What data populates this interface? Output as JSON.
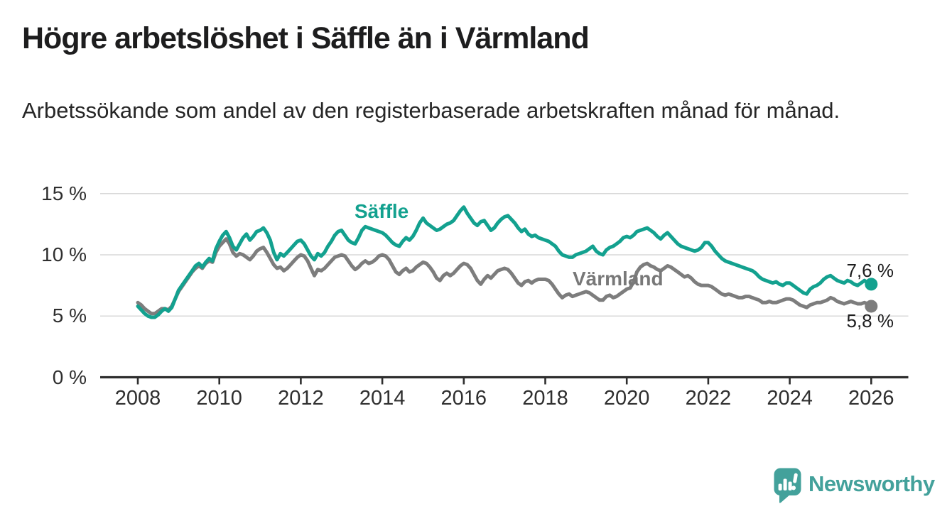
{
  "title": "Högre arbetslöshet i Säffle än i Värmland",
  "subtitle": "Arbetssökande som andel av den registerbaserade arbetskraften månad för månad.",
  "footer": {
    "brand": "Newsworthy"
  },
  "colors": {
    "saffle_line": "#13a18f",
    "varmland_line": "#7d7d7d",
    "axis": "#2e2e2e",
    "grid": "#d9d9d9",
    "text": "#1d1d1e",
    "brand_teal": "#43a19b"
  },
  "chart_data": {
    "type": "line",
    "title": "Högre arbetslöshet i Säffle än i Värmland",
    "subtitle": "Arbetssökande som andel av den registerbaserade arbetskraften månad för månad.",
    "unit": "%",
    "x_interval": "monthly",
    "x_start": "2008-01",
    "x_end": "2026-01",
    "xlim": [
      2007.05,
      2027.0
    ],
    "ylim": [
      0,
      15
    ],
    "grid": "horizontal",
    "x_ticks": [
      2008,
      2010,
      2012,
      2014,
      2016,
      2018,
      2020,
      2022,
      2024,
      2026
    ],
    "y_ticks": [
      {
        "value": 15,
        "label": "15 %"
      },
      {
        "value": 10,
        "label": "10 %"
      },
      {
        "value": 5,
        "label": "5 %"
      },
      {
        "value": 0,
        "label": "0 %"
      }
    ],
    "series": [
      {
        "name": "Säffle",
        "color": "#13a18f",
        "end_label": "7,6 %",
        "end_value": 7.6,
        "values": [
          5.8,
          5.5,
          5.2,
          5.0,
          4.9,
          4.9,
          5.1,
          5.4,
          5.6,
          5.4,
          5.7,
          6.4,
          7.1,
          7.5,
          7.9,
          8.3,
          8.7,
          9.1,
          9.3,
          9.0,
          9.4,
          9.7,
          9.5,
          10.5,
          11.1,
          11.6,
          11.9,
          11.4,
          10.7,
          10.4,
          10.9,
          11.4,
          11.7,
          11.2,
          11.5,
          11.9,
          12.0,
          12.2,
          11.8,
          11.2,
          10.2,
          9.6,
          10.1,
          9.9,
          10.2,
          10.5,
          10.8,
          11.1,
          11.2,
          10.9,
          10.4,
          9.9,
          9.6,
          10.1,
          9.9,
          10.2,
          10.7,
          11.1,
          11.6,
          11.9,
          12.0,
          11.6,
          11.2,
          11.0,
          10.9,
          11.4,
          12.0,
          12.3,
          12.2,
          12.1,
          12.0,
          11.9,
          11.8,
          11.6,
          11.3,
          11.0,
          10.8,
          10.7,
          11.1,
          11.4,
          11.2,
          11.5,
          12.0,
          12.6,
          13.0,
          12.6,
          12.4,
          12.2,
          12.0,
          12.1,
          12.3,
          12.5,
          12.6,
          12.8,
          13.2,
          13.6,
          13.9,
          13.4,
          13.0,
          12.6,
          12.4,
          12.7,
          12.8,
          12.4,
          12.0,
          12.2,
          12.6,
          12.9,
          13.1,
          13.2,
          12.9,
          12.6,
          12.2,
          11.9,
          12.1,
          11.7,
          11.5,
          11.6,
          11.4,
          11.3,
          11.2,
          11.1,
          10.9,
          10.7,
          10.3,
          10.0,
          9.9,
          9.8,
          9.8,
          10.0,
          10.1,
          10.2,
          10.3,
          10.5,
          10.7,
          10.3,
          10.1,
          10.0,
          10.4,
          10.6,
          10.7,
          10.9,
          11.1,
          11.4,
          11.5,
          11.4,
          11.6,
          11.9,
          12.0,
          12.1,
          12.2,
          12.0,
          11.8,
          11.5,
          11.3,
          11.6,
          11.8,
          11.5,
          11.2,
          10.9,
          10.7,
          10.6,
          10.5,
          10.4,
          10.3,
          10.4,
          10.6,
          11.0,
          11.0,
          10.7,
          10.3,
          10.0,
          9.7,
          9.5,
          9.4,
          9.3,
          9.2,
          9.1,
          9.0,
          8.9,
          8.8,
          8.7,
          8.5,
          8.2,
          8.0,
          7.9,
          7.8,
          7.7,
          7.8,
          7.6,
          7.5,
          7.7,
          7.7,
          7.5,
          7.3,
          7.1,
          6.9,
          6.8,
          7.2,
          7.4,
          7.5,
          7.7,
          8.0,
          8.2,
          8.3,
          8.1,
          7.9,
          7.8,
          7.7,
          7.9,
          7.8,
          7.6,
          7.5,
          7.7,
          7.9,
          7.7,
          7.6
        ]
      },
      {
        "name": "Värmland",
        "color": "#7d7d7d",
        "end_label": "5,8 %",
        "end_value": 5.8,
        "values": [
          6.1,
          5.9,
          5.6,
          5.4,
          5.2,
          5.2,
          5.4,
          5.6,
          5.6,
          5.5,
          5.8,
          6.4,
          7.0,
          7.4,
          7.8,
          8.2,
          8.6,
          8.9,
          9.1,
          8.9,
          9.3,
          9.5,
          9.4,
          10.2,
          10.7,
          11.0,
          11.3,
          10.9,
          10.2,
          9.9,
          10.1,
          10.0,
          9.8,
          9.6,
          9.9,
          10.3,
          10.5,
          10.6,
          10.2,
          9.7,
          9.2,
          8.9,
          9.0,
          8.7,
          8.9,
          9.2,
          9.5,
          9.8,
          10.0,
          9.9,
          9.5,
          8.9,
          8.3,
          8.8,
          8.7,
          8.9,
          9.2,
          9.5,
          9.8,
          9.9,
          10.0,
          9.9,
          9.5,
          9.1,
          8.8,
          9.0,
          9.3,
          9.5,
          9.3,
          9.4,
          9.6,
          9.9,
          10.0,
          9.9,
          9.6,
          9.1,
          8.6,
          8.4,
          8.7,
          8.9,
          8.6,
          8.7,
          9.0,
          9.2,
          9.4,
          9.3,
          9.0,
          8.6,
          8.1,
          7.9,
          8.3,
          8.5,
          8.3,
          8.5,
          8.8,
          9.1,
          9.3,
          9.2,
          8.9,
          8.4,
          7.9,
          7.6,
          8.0,
          8.3,
          8.1,
          8.4,
          8.7,
          8.8,
          8.9,
          8.8,
          8.5,
          8.1,
          7.7,
          7.5,
          7.8,
          7.9,
          7.7,
          7.9,
          8.0,
          8.0,
          8.0,
          7.9,
          7.6,
          7.2,
          6.8,
          6.5,
          6.7,
          6.8,
          6.6,
          6.7,
          6.8,
          6.9,
          7.0,
          6.9,
          6.7,
          6.5,
          6.3,
          6.3,
          6.6,
          6.7,
          6.5,
          6.6,
          6.8,
          7.0,
          7.2,
          7.3,
          7.8,
          8.6,
          9.0,
          9.2,
          9.3,
          9.1,
          9.0,
          8.8,
          8.7,
          8.9,
          9.1,
          9.0,
          8.8,
          8.6,
          8.4,
          8.2,
          8.3,
          8.1,
          7.8,
          7.6,
          7.5,
          7.5,
          7.5,
          7.4,
          7.2,
          7.0,
          6.8,
          6.7,
          6.8,
          6.7,
          6.6,
          6.5,
          6.5,
          6.6,
          6.6,
          6.5,
          6.4,
          6.3,
          6.1,
          6.1,
          6.2,
          6.1,
          6.1,
          6.2,
          6.3,
          6.4,
          6.4,
          6.3,
          6.1,
          5.9,
          5.8,
          5.7,
          5.9,
          6.0,
          6.1,
          6.1,
          6.2,
          6.3,
          6.5,
          6.4,
          6.2,
          6.1,
          6.0,
          6.1,
          6.2,
          6.1,
          6.0,
          6.0,
          6.1,
          6.0,
          5.8
        ]
      }
    ]
  }
}
